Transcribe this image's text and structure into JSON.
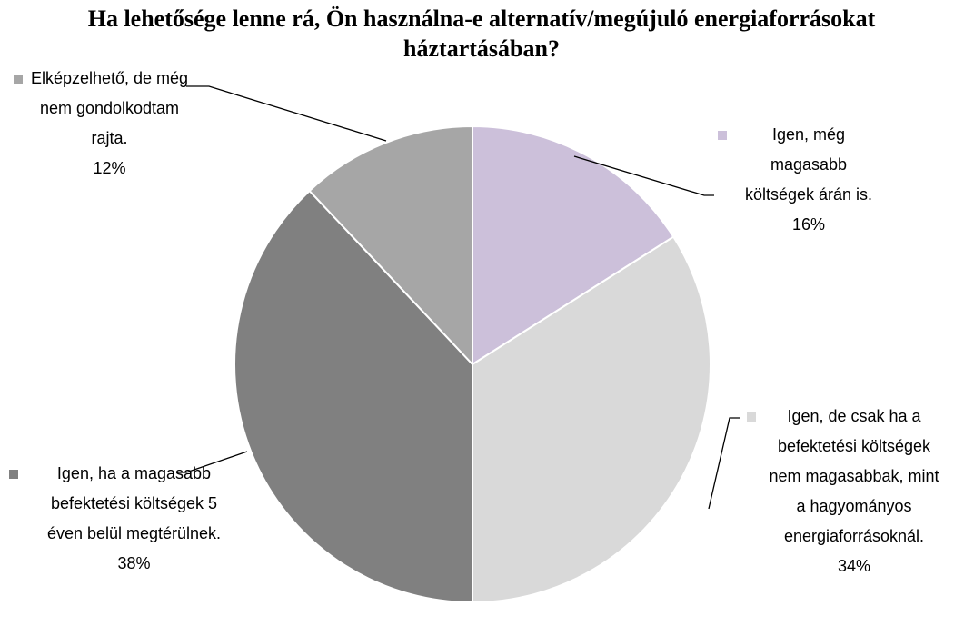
{
  "chart_data": {
    "type": "pie",
    "title": "Ha lehetősége lenne rá, Ön használna-e alternatív/megújuló energiaforrásokat háztartásában?",
    "categories": [
      "Igen, még magasabb költségek árán is.",
      "Igen, de csak ha a befektetési költségek nem magasabbak, mint a hagyományos energiaforrásoknál.",
      "Igen, ha a magasabb befektetési költségek 5 éven belül megtérülnek.",
      "Elképzelhető, de még nem gondolkodtam rajta."
    ],
    "values": [
      16,
      34,
      38,
      12
    ],
    "value_labels": [
      "16%",
      "34%",
      "38%",
      "12%"
    ],
    "colors": [
      "#ccc0da",
      "#d9d9d9",
      "#808080",
      "#a6a6a6"
    ]
  }
}
